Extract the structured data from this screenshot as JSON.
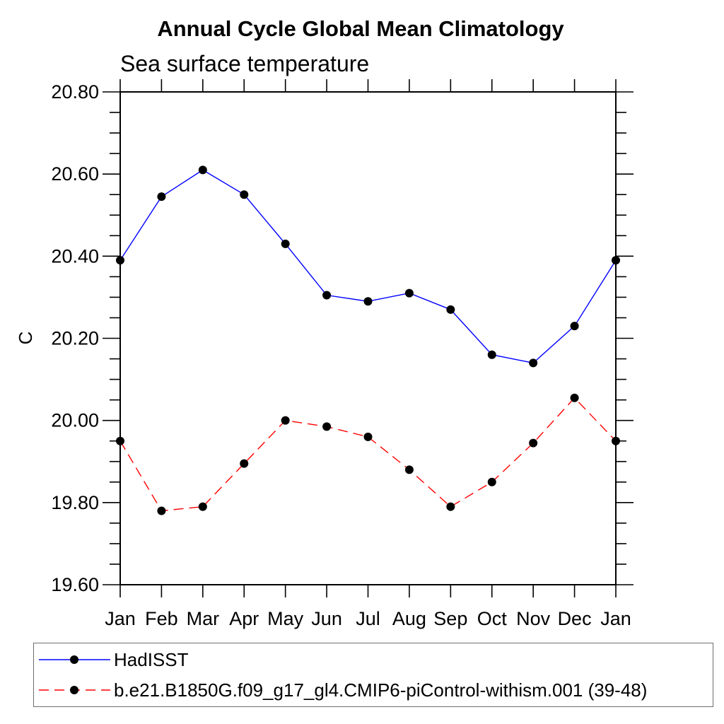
{
  "chart_data": {
    "type": "line",
    "title": "Annual Cycle Global Mean Climatology",
    "subtitle": "Sea surface temperature",
    "ylabel": "C",
    "xlabel": "",
    "categories": [
      "Jan",
      "Feb",
      "Mar",
      "Apr",
      "May",
      "Jun",
      "Jul",
      "Aug",
      "Sep",
      "Oct",
      "Nov",
      "Dec",
      "Jan"
    ],
    "ylim": [
      19.6,
      20.8
    ],
    "ytick_major": 0.2,
    "ytick_minor": 0.05,
    "ytick_label_format": "2dp",
    "grid": false,
    "legend_position": "bottom-left-box",
    "series": [
      {
        "name": "HadISST",
        "color": "#0000ff",
        "line_style": "solid",
        "marker": "filled-circle",
        "marker_color": "#000000",
        "values": [
          20.39,
          20.545,
          20.61,
          20.55,
          20.43,
          20.305,
          20.29,
          20.31,
          20.27,
          20.16,
          20.14,
          20.23,
          20.39
        ]
      },
      {
        "name": "b.e21.B1850G.f09_g17_gl4.CMIP6-piControl-withism.001 (39-48)",
        "color": "#ff0000",
        "line_style": "dashed",
        "marker": "filled-circle",
        "marker_color": "#000000",
        "values": [
          19.95,
          19.78,
          19.79,
          19.895,
          20.0,
          19.985,
          19.96,
          19.88,
          19.79,
          19.85,
          19.945,
          20.055,
          19.95
        ]
      }
    ]
  }
}
